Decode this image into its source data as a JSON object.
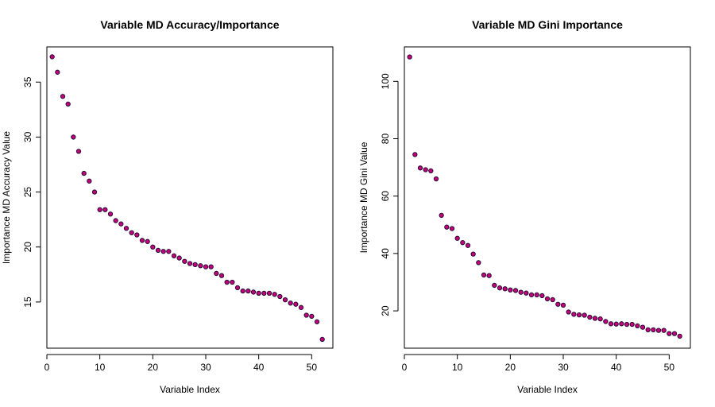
{
  "chart_data": [
    {
      "type": "scatter",
      "title": "Variable MD Accuracy/Importance",
      "xlabel": "Variable Index",
      "ylabel": "Importance MD Accuracy Value",
      "xlim": [
        0,
        54
      ],
      "ylim": [
        10.8,
        38.2
      ],
      "x_ticks": [
        0,
        10,
        20,
        30,
        40,
        50
      ],
      "y_ticks": [
        15,
        20,
        25,
        30,
        35
      ],
      "grid": false,
      "legend": "none",
      "marker_fill": "#c2007a",
      "marker_stroke": "#1a0d2e",
      "x": [
        1,
        2,
        3,
        4,
        5,
        6,
        7,
        8,
        9,
        10,
        11,
        12,
        13,
        14,
        15,
        16,
        17,
        18,
        19,
        20,
        21,
        22,
        23,
        24,
        25,
        26,
        27,
        28,
        29,
        30,
        31,
        32,
        33,
        34,
        35,
        36,
        37,
        38,
        39,
        40,
        41,
        42,
        43,
        44,
        45,
        46,
        47,
        48,
        49,
        50,
        51,
        52
      ],
      "values": [
        37.3,
        35.9,
        33.7,
        33.0,
        30.0,
        28.7,
        26.7,
        26.0,
        25.0,
        23.4,
        23.4,
        23.0,
        22.4,
        22.1,
        21.7,
        21.3,
        21.1,
        20.6,
        20.5,
        20.0,
        19.7,
        19.6,
        19.6,
        19.2,
        19.0,
        18.7,
        18.5,
        18.4,
        18.3,
        18.2,
        18.2,
        17.6,
        17.4,
        16.8,
        16.8,
        16.3,
        16.0,
        16.0,
        15.9,
        15.8,
        15.8,
        15.8,
        15.7,
        15.5,
        15.2,
        14.9,
        14.8,
        14.5,
        13.8,
        13.7,
        13.2,
        11.6
      ]
    },
    {
      "type": "scatter",
      "title": "Variable MD Gini Importance",
      "xlabel": "Variable Index",
      "ylabel": "Importance MD Gini Value",
      "xlim": [
        0,
        54
      ],
      "ylim": [
        7.0,
        112.0
      ],
      "x_ticks": [
        0,
        10,
        20,
        30,
        40,
        50
      ],
      "y_ticks": [
        20,
        40,
        60,
        80,
        100
      ],
      "grid": false,
      "legend": "none",
      "marker_fill": "#c2007a",
      "marker_stroke": "#1a0d2e",
      "x": [
        1,
        2,
        3,
        4,
        5,
        6,
        7,
        8,
        9,
        10,
        11,
        12,
        13,
        14,
        15,
        16,
        17,
        18,
        19,
        20,
        21,
        22,
        23,
        24,
        25,
        26,
        27,
        28,
        29,
        30,
        31,
        32,
        33,
        34,
        35,
        36,
        37,
        38,
        39,
        40,
        41,
        42,
        43,
        44,
        45,
        46,
        47,
        48,
        49,
        50,
        51,
        52
      ],
      "values": [
        108.5,
        74.5,
        69.8,
        69.2,
        68.8,
        66.0,
        53.3,
        49.2,
        48.7,
        45.3,
        43.8,
        42.8,
        39.8,
        36.8,
        32.5,
        32.3,
        28.9,
        28.0,
        27.7,
        27.3,
        27.1,
        26.5,
        26.2,
        25.6,
        25.6,
        25.3,
        24.2,
        23.9,
        22.3,
        22.0,
        19.6,
        18.8,
        18.6,
        18.5,
        17.8,
        17.4,
        17.2,
        16.3,
        15.5,
        15.4,
        15.5,
        15.3,
        15.3,
        14.8,
        14.3,
        13.4,
        13.4,
        13.2,
        13.2,
        12.1,
        12.1,
        11.2
      ]
    }
  ]
}
